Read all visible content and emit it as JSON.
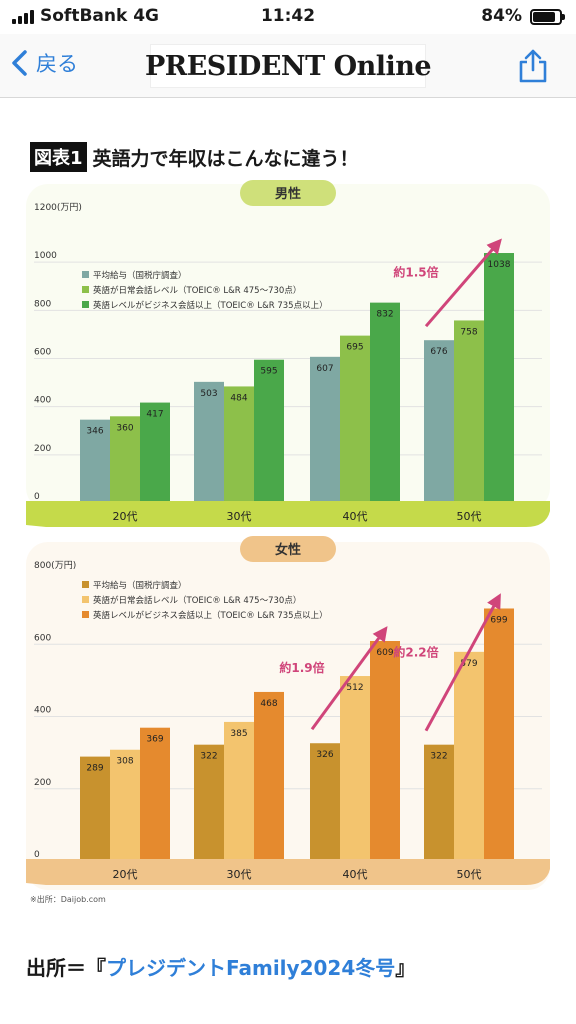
{
  "status": {
    "carrier": "SoftBank  4G",
    "time": "11:42",
    "battery": "84%",
    "battery_level": 0.84
  },
  "nav": {
    "back_label": "戻る",
    "logo_text": "PRESIDENT Online"
  },
  "figure": {
    "tag": "図表1",
    "title": "英語力で年収はこんなに違う！"
  },
  "chart_data": [
    {
      "type": "bar",
      "title": "男性",
      "unit_label": "1200(万円)",
      "yticks": [
        0,
        200,
        400,
        600,
        800,
        1000
      ],
      "ylim": [
        0,
        1200
      ],
      "categories": [
        "20代",
        "30代",
        "40代",
        "50代"
      ],
      "series": [
        {
          "name": "平均給与（国税庁調査）",
          "color": "#7fa8a3",
          "values": [
            346,
            503,
            607,
            676
          ]
        },
        {
          "name": "英語が日常会話レベル（TOEIC® L&R 475～730点）",
          "color": "#8dc04a",
          "values": [
            360,
            484,
            695,
            758
          ]
        },
        {
          "name": "英語レベルがビジネス会話以上（TOEIC® L&R 735点以上）",
          "color": "#4aa84a",
          "values": [
            417,
            595,
            832,
            1038
          ]
        }
      ],
      "annotations": [
        {
          "text": "約1.5倍",
          "category": "50代"
        }
      ],
      "legend": "top-left"
    },
    {
      "type": "bar",
      "title": "女性",
      "unit_label": "800(万円)",
      "yticks": [
        0,
        200,
        400,
        600
      ],
      "ylim": [
        0,
        800
      ],
      "categories": [
        "20代",
        "30代",
        "40代",
        "50代"
      ],
      "series": [
        {
          "name": "平均給与（国税庁調査）",
          "color": "#c8922e",
          "values": [
            289,
            322,
            326,
            322
          ]
        },
        {
          "name": "英語が日常会話レベル（TOEIC® L&R 475～730点）",
          "color": "#f3c46e",
          "values": [
            308,
            385,
            512,
            579
          ]
        },
        {
          "name": "英語レベルがビジネス会話以上（TOEIC® L&R 735点以上）",
          "color": "#e58a2e",
          "values": [
            369,
            468,
            609,
            699
          ]
        }
      ],
      "annotations": [
        {
          "text": "約1.9倍",
          "category": "40代"
        },
        {
          "text": "約2.2倍",
          "category": "50代"
        }
      ],
      "legend": "top-left"
    }
  ],
  "source_note": "※出所：Daijob.com",
  "caption": {
    "prefix": "出所＝『",
    "link": "プレジデントFamily2024冬号",
    "suffix": "』"
  },
  "colors": {
    "accent": "#2f7fd8",
    "arrow": "#d0457a",
    "male_pill": "#cfe07a",
    "male_base": "#c5da4a",
    "female_pill": "#f0c48a",
    "female_base": "#f0c48a"
  }
}
